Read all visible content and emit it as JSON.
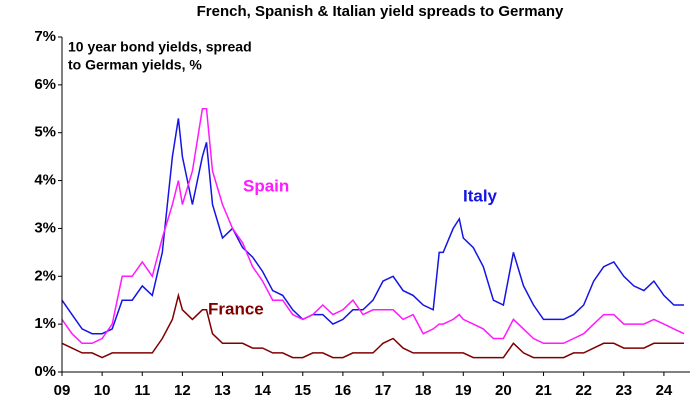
{
  "chart_data": {
    "type": "line",
    "title": "French, Spanish & Italian yield spreads to Germany",
    "annotation": [
      "10 year bond yields, spread",
      "to German yields, %"
    ],
    "x": [
      2009,
      2009.25,
      2009.5,
      2009.75,
      2010,
      2010.25,
      2010.5,
      2010.75,
      2011,
      2011.25,
      2011.5,
      2011.75,
      2011.9,
      2012,
      2012.25,
      2012.5,
      2012.6,
      2012.75,
      2013,
      2013.25,
      2013.5,
      2013.75,
      2014,
      2014.25,
      2014.5,
      2014.75,
      2015,
      2015.25,
      2015.5,
      2015.75,
      2016,
      2016.25,
      2016.5,
      2016.75,
      2017,
      2017.25,
      2017.5,
      2017.75,
      2018,
      2018.25,
      2018.4,
      2018.5,
      2018.75,
      2018.9,
      2019,
      2019.25,
      2019.5,
      2019.75,
      2020,
      2020.25,
      2020.5,
      2020.75,
      2021,
      2021.25,
      2021.5,
      2021.75,
      2022,
      2022.25,
      2022.5,
      2022.75,
      2023,
      2023.25,
      2023.5,
      2023.75,
      2024,
      2024.25,
      2024.5
    ],
    "series": [
      {
        "name": "Italy",
        "color": "#1414e6",
        "values": [
          1.5,
          1.2,
          0.9,
          0.8,
          0.8,
          0.9,
          1.5,
          1.5,
          1.8,
          1.6,
          2.5,
          4.5,
          5.3,
          4.5,
          3.5,
          4.5,
          4.8,
          3.5,
          2.8,
          3.0,
          2.6,
          2.4,
          2.1,
          1.7,
          1.6,
          1.3,
          1.1,
          1.2,
          1.2,
          1.0,
          1.1,
          1.3,
          1.3,
          1.5,
          1.9,
          2.0,
          1.7,
          1.6,
          1.4,
          1.3,
          2.5,
          2.5,
          3.0,
          3.2,
          2.8,
          2.6,
          2.2,
          1.5,
          1.4,
          2.5,
          1.8,
          1.4,
          1.1,
          1.1,
          1.1,
          1.2,
          1.4,
          1.9,
          2.2,
          2.3,
          2.0,
          1.8,
          1.7,
          1.9,
          1.6,
          1.4,
          1.4
        ]
      },
      {
        "name": "Spain",
        "color": "#ff1aff",
        "values": [
          1.1,
          0.8,
          0.6,
          0.6,
          0.7,
          1.0,
          2.0,
          2.0,
          2.3,
          2.0,
          2.8,
          3.5,
          4.0,
          3.5,
          4.2,
          5.5,
          5.5,
          4.2,
          3.5,
          3.0,
          2.7,
          2.2,
          1.9,
          1.5,
          1.5,
          1.2,
          1.1,
          1.2,
          1.4,
          1.2,
          1.3,
          1.5,
          1.2,
          1.3,
          1.3,
          1.3,
          1.1,
          1.2,
          0.8,
          0.9,
          1.0,
          1.0,
          1.1,
          1.2,
          1.1,
          1.0,
          0.9,
          0.7,
          0.7,
          1.1,
          0.9,
          0.7,
          0.6,
          0.6,
          0.6,
          0.7,
          0.8,
          1.0,
          1.2,
          1.2,
          1.0,
          1.0,
          1.0,
          1.1,
          1.0,
          0.9,
          0.8
        ]
      },
      {
        "name": "France",
        "color": "#800000",
        "values": [
          0.6,
          0.5,
          0.4,
          0.4,
          0.3,
          0.4,
          0.4,
          0.4,
          0.4,
          0.4,
          0.7,
          1.1,
          1.6,
          1.3,
          1.1,
          1.3,
          1.3,
          0.8,
          0.6,
          0.6,
          0.6,
          0.5,
          0.5,
          0.4,
          0.4,
          0.3,
          0.3,
          0.4,
          0.4,
          0.3,
          0.3,
          0.4,
          0.4,
          0.4,
          0.6,
          0.7,
          0.5,
          0.4,
          0.4,
          0.4,
          0.4,
          0.4,
          0.4,
          0.4,
          0.4,
          0.3,
          0.3,
          0.3,
          0.3,
          0.6,
          0.4,
          0.3,
          0.3,
          0.3,
          0.3,
          0.4,
          0.4,
          0.5,
          0.6,
          0.6,
          0.5,
          0.5,
          0.5,
          0.6,
          0.6,
          0.6,
          0.6
        ]
      }
    ],
    "xlim": [
      2009,
      2024.65
    ],
    "xticks": [
      {
        "value": 2009,
        "label": "09"
      },
      {
        "value": 2010,
        "label": "10"
      },
      {
        "value": 2011,
        "label": "11"
      },
      {
        "value": 2012,
        "label": "12"
      },
      {
        "value": 2013,
        "label": "13"
      },
      {
        "value": 2014,
        "label": "14"
      },
      {
        "value": 2015,
        "label": "15"
      },
      {
        "value": 2016,
        "label": "16"
      },
      {
        "value": 2017,
        "label": "17"
      },
      {
        "value": 2018,
        "label": "18"
      },
      {
        "value": 2019,
        "label": "19"
      },
      {
        "value": 2020,
        "label": "20"
      },
      {
        "value": 2021,
        "label": "21"
      },
      {
        "value": 2022,
        "label": "22"
      },
      {
        "value": 2023,
        "label": "23"
      },
      {
        "value": 2024,
        "label": "24"
      }
    ],
    "ylim": [
      0,
      7
    ],
    "yticks": [
      {
        "value": 0,
        "label": "0%"
      },
      {
        "value": 1,
        "label": "1%"
      },
      {
        "value": 2,
        "label": "2%"
      },
      {
        "value": 3,
        "label": "3%"
      },
      {
        "value": 4,
        "label": "4%"
      },
      {
        "value": 5,
        "label": "5%"
      },
      {
        "value": 6,
        "label": "6%"
      },
      {
        "value": 7,
        "label": "7%"
      }
    ],
    "grid": false
  }
}
